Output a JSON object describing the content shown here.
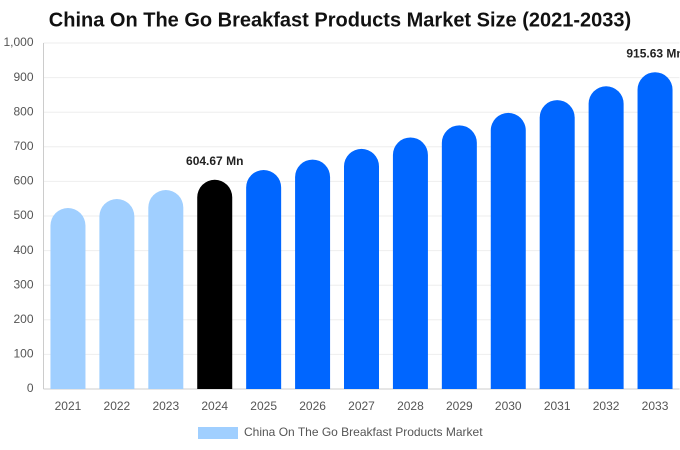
{
  "chart_data": {
    "type": "bar",
    "title": "China On The Go Breakfast Products Market Size (2021-2033)",
    "categories": [
      "2021",
      "2022",
      "2023",
      "2024",
      "2025",
      "2026",
      "2027",
      "2028",
      "2029",
      "2030",
      "2031",
      "2032",
      "2033"
    ],
    "series": [
      {
        "name": "China On The Go Breakfast Products Market",
        "color": "#a0cfff",
        "values": [
          523,
          549,
          575,
          604.67,
          633,
          663,
          694,
          727,
          762,
          798,
          835,
          875,
          915.63
        ],
        "value_labels": [
          null,
          null,
          null,
          "604.67 Mn",
          null,
          null,
          null,
          null,
          null,
          null,
          null,
          null,
          "915.63 Mn"
        ],
        "colors": [
          "#a0cfff",
          "#a0cfff",
          "#a0cfff",
          "#000000",
          "#0066ff",
          "#0066ff",
          "#0066ff",
          "#0066ff",
          "#0066ff",
          "#0066ff",
          "#0066ff",
          "#0066ff",
          "#0066ff"
        ]
      }
    ],
    "ylim": [
      0,
      1000
    ],
    "yticks": [
      0,
      100,
      200,
      300,
      400,
      500,
      600,
      700,
      800,
      900,
      {
        "value": 1000,
        "label": "1,000"
      }
    ],
    "grid": true
  }
}
